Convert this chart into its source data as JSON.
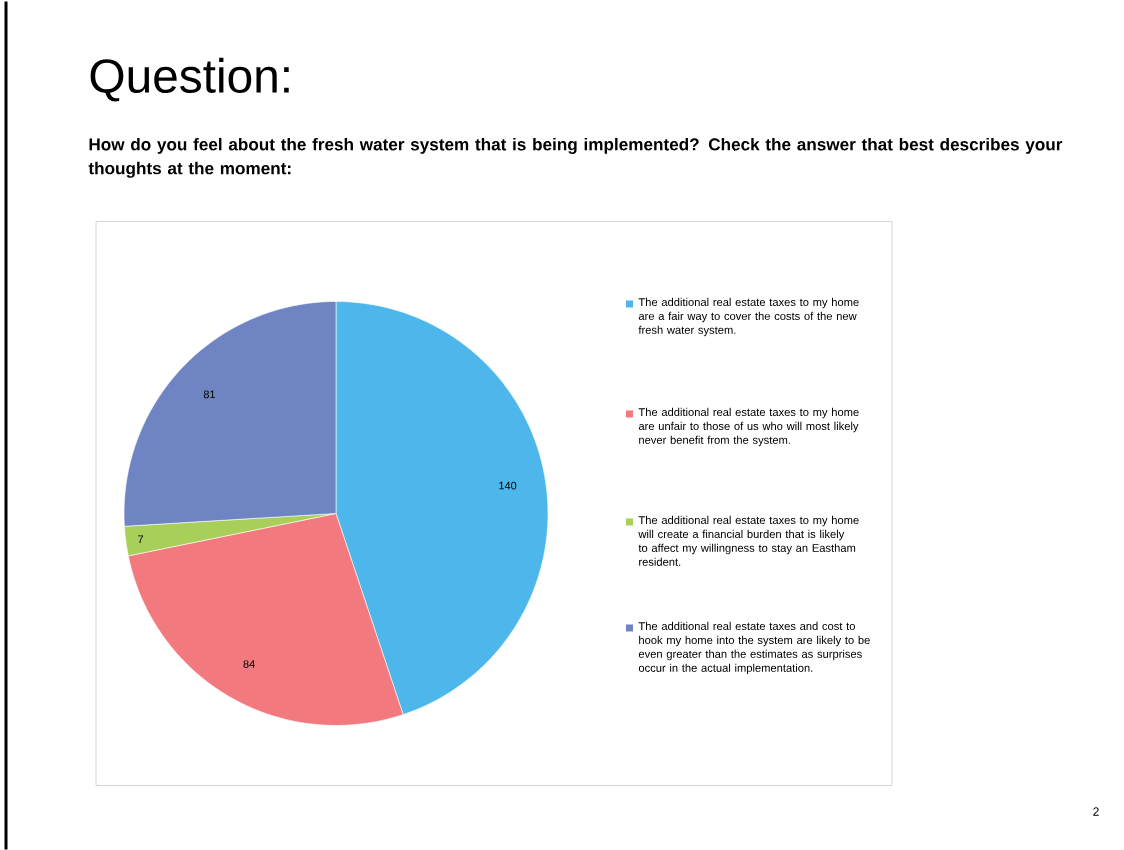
{
  "chart_data": {
    "type": "pie",
    "title": "Question:",
    "subtitle": "How do you feel about the fresh water system that is being implemented?  Check the answer that best describes your thoughts at the moment:",
    "categories": [
      "The additional real estate taxes to my home are a fair way to cover the costs of the new fresh water system.",
      "The additional real estate taxes to my home are unfair to those of us who will most likely never benefit from the system.",
      "The additional real estate taxes to my home will create a financial burden that is likely to affect my willingness to stay an Eastham resident.",
      "The additional real estate taxes and cost to hook my home into the system are likely to be even greater than the estimates as surprises occur in the actual implementation."
    ],
    "values": [
      140,
      84,
      7,
      81
    ],
    "colors": [
      "#4db6ea",
      "#f27a7e",
      "#a9cf5b",
      "#6f85c3"
    ],
    "data_labels": true,
    "legend": "right",
    "annotations": [
      "2"
    ]
  }
}
